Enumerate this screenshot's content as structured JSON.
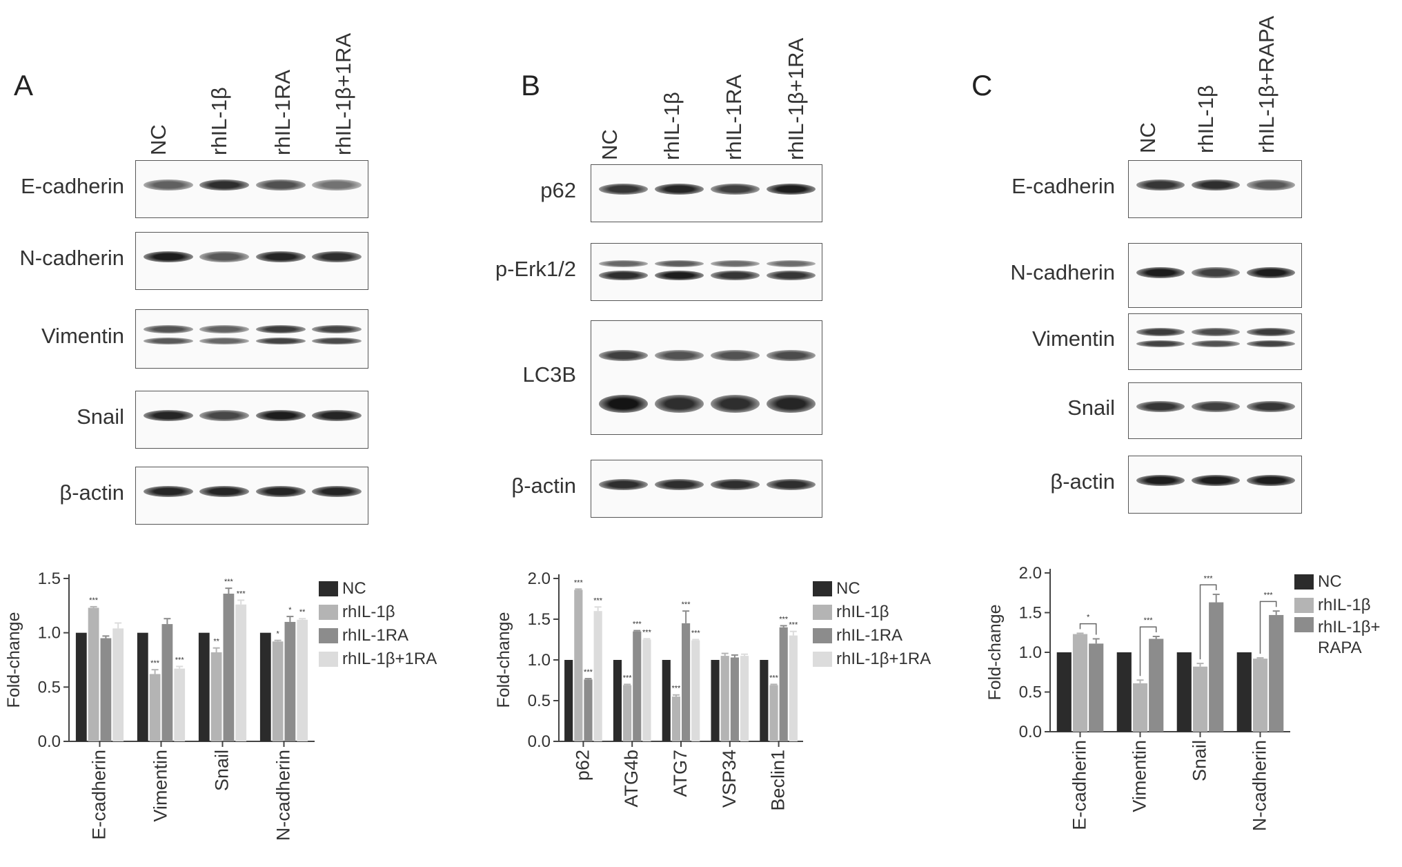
{
  "colors": {
    "NC": "#2b2b2b",
    "s2": "#b4b4b4",
    "s3": "#8c8c8c",
    "s4": "#dcdcdc"
  },
  "panels": [
    {
      "letter": "A",
      "lanes": [
        "NC",
        "rhIL-1β",
        "rhIL-1RA",
        "rhIL-1β+1RA"
      ],
      "blots": [
        {
          "label": "E-cadherin",
          "intensity": [
            0.55,
            0.85,
            0.65,
            0.45
          ]
        },
        {
          "label": "N-cadherin",
          "intensity": [
            0.95,
            0.6,
            0.9,
            0.85
          ]
        },
        {
          "label": "Vimentin",
          "intensity": [
            0.7,
            0.6,
            0.85,
            0.8
          ]
        },
        {
          "label": "Snail",
          "intensity": [
            0.9,
            0.7,
            0.95,
            0.9
          ]
        },
        {
          "label": "β-actin",
          "intensity": [
            0.9,
            0.9,
            0.9,
            0.9
          ]
        }
      ],
      "legend": [
        "NC",
        "rhIL-1β",
        "rhIL-1RA",
        "rhIL-1β+1RA"
      ]
    },
    {
      "letter": "B",
      "lanes": [
        "NC",
        "rhIL-1β",
        "rhIL-1RA",
        "rhIL-1β+1RA"
      ],
      "blots": [
        {
          "label": "p62",
          "intensity": [
            0.8,
            0.9,
            0.75,
            0.95
          ]
        },
        {
          "label": "p-Erk1/2",
          "intensity": [
            0.85,
            0.95,
            0.8,
            0.8
          ]
        },
        {
          "label": "LC3B",
          "intensity": [
            1.0,
            0.85,
            0.85,
            0.9
          ]
        },
        {
          "label": "β-actin",
          "intensity": [
            0.85,
            0.85,
            0.85,
            0.85
          ]
        }
      ],
      "legend": [
        "NC",
        "rhIL-1β",
        "rhIL-1RA",
        "rhIL-1β+1RA"
      ]
    },
    {
      "letter": "C",
      "lanes": [
        "NC",
        "rhIL-1β",
        "rhIL-1β+RAPA"
      ],
      "blots": [
        {
          "label": "E-cadherin",
          "intensity": [
            0.8,
            0.85,
            0.6
          ]
        },
        {
          "label": "N-cadherin",
          "intensity": [
            0.95,
            0.75,
            0.95
          ]
        },
        {
          "label": "Vimentin",
          "intensity": [
            0.85,
            0.75,
            0.85
          ]
        },
        {
          "label": "Snail",
          "intensity": [
            0.8,
            0.75,
            0.8
          ]
        },
        {
          "label": "β-actin",
          "intensity": [
            0.95,
            0.95,
            0.95
          ]
        }
      ],
      "legend": [
        "NC",
        "rhIL-1β",
        "rhIL-1β+\nRAPA"
      ]
    }
  ],
  "chart_data": [
    {
      "type": "bar",
      "ylabel": "Fold-change",
      "ylim": [
        0,
        1.5
      ],
      "yticks": [
        "0.0",
        "0.5",
        "1.0",
        "1.5"
      ],
      "categories": [
        "E-cadherin",
        "Vimentin",
        "Snail",
        "N-cadherin"
      ],
      "series": [
        {
          "name": "NC",
          "values": [
            1.0,
            1.0,
            1.0,
            1.0
          ],
          "errors": [
            0,
            0,
            0,
            0
          ],
          "sig": [
            "",
            "",
            "",
            ""
          ]
        },
        {
          "name": "rhIL-1β",
          "values": [
            1.23,
            0.62,
            0.82,
            0.92
          ],
          "errors": [
            0.01,
            0.04,
            0.04,
            0.01
          ],
          "sig": [
            "***",
            "***",
            "**",
            "*"
          ]
        },
        {
          "name": "rhIL-1RA",
          "values": [
            0.95,
            1.08,
            1.36,
            1.1
          ],
          "errors": [
            0.02,
            0.05,
            0.05,
            0.05
          ],
          "sig": [
            "",
            "",
            "***",
            "*"
          ]
        },
        {
          "name": "rhIL-1β+1RA",
          "values": [
            1.04,
            0.67,
            1.26,
            1.12
          ],
          "errors": [
            0.05,
            0.02,
            0.04,
            0.01
          ],
          "sig": [
            "",
            "***",
            "***",
            "**"
          ]
        }
      ],
      "legend_position": "right"
    },
    {
      "type": "bar",
      "ylabel": "Fold-change",
      "ylim": [
        0,
        2.0
      ],
      "yticks": [
        "0.0",
        "0.5",
        "1.0",
        "1.5",
        "2.0"
      ],
      "categories": [
        "p62",
        "ATG4b",
        "ATG7",
        "VSP34",
        "Beclin1"
      ],
      "series": [
        {
          "name": "NC",
          "values": [
            1.0,
            1.0,
            1.0,
            1.0,
            1.0
          ],
          "errors": [
            0,
            0,
            0,
            0,
            0
          ],
          "sig": [
            "",
            "",
            "",
            "",
            ""
          ]
        },
        {
          "name": "rhIL-1β",
          "values": [
            1.86,
            0.69,
            0.55,
            1.05,
            0.69
          ],
          "errors": [
            0.01,
            0.01,
            0.02,
            0.03,
            0.01
          ],
          "sig": [
            "***",
            "***",
            "***",
            "",
            "***"
          ]
        },
        {
          "name": "rhIL-1RA",
          "values": [
            0.76,
            1.35,
            1.45,
            1.03,
            1.4
          ],
          "errors": [
            0.01,
            0.01,
            0.15,
            0.03,
            0.02
          ],
          "sig": [
            "***",
            "***",
            "***",
            "",
            "***"
          ]
        },
        {
          "name": "rhIL-1β+1RA",
          "values": [
            1.6,
            1.25,
            1.24,
            1.05,
            1.3
          ],
          "errors": [
            0.05,
            0.01,
            0.01,
            0.02,
            0.05
          ],
          "sig": [
            "***",
            "***",
            "***",
            "",
            "***"
          ]
        }
      ],
      "legend_position": "right"
    },
    {
      "type": "bar",
      "ylabel": "Fold-change",
      "ylim": [
        0,
        2.0
      ],
      "yticks": [
        "0.0",
        "0.5",
        "1.0",
        "1.5",
        "2.0"
      ],
      "categories": [
        "E-cadherin",
        "Vimentin",
        "Snail",
        "N-cadherin"
      ],
      "series": [
        {
          "name": "NC",
          "values": [
            1.0,
            1.0,
            1.0,
            1.0
          ],
          "errors": [
            0,
            0,
            0,
            0
          ]
        },
        {
          "name": "rhIL-1β",
          "values": [
            1.23,
            0.61,
            0.82,
            0.92
          ],
          "errors": [
            0.01,
            0.04,
            0.04,
            0.01
          ]
        },
        {
          "name": "rhIL-1β+RAPA",
          "values": [
            1.11,
            1.17,
            1.63,
            1.47
          ],
          "errors": [
            0.06,
            0.03,
            0.1,
            0.05
          ]
        }
      ],
      "brackets": [
        "*",
        "***",
        "***",
        "***"
      ],
      "legend_position": "right"
    }
  ]
}
